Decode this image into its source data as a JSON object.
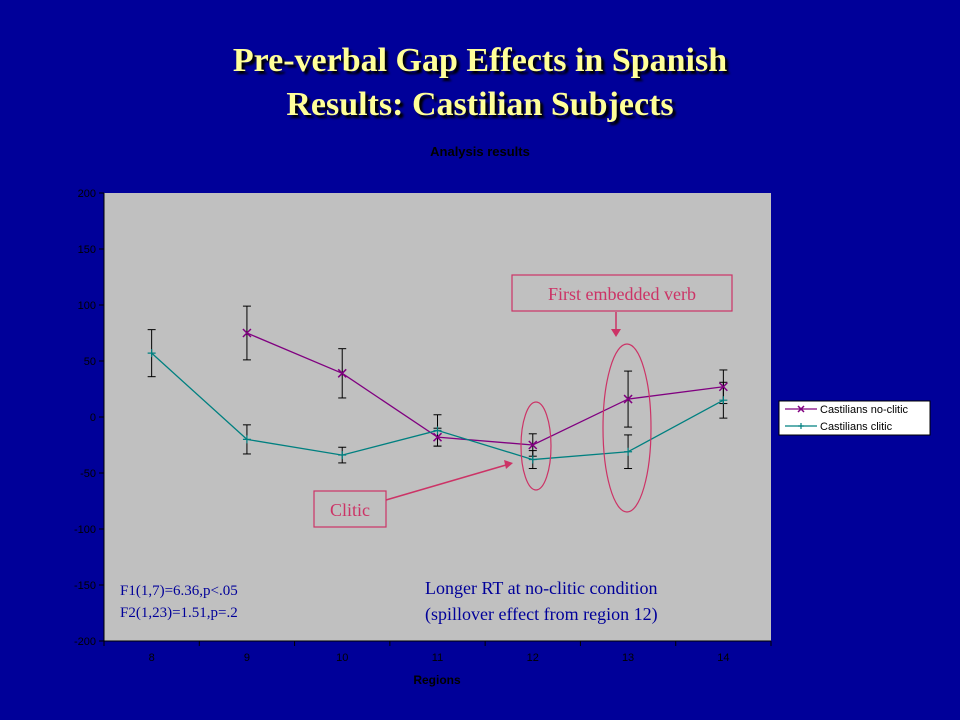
{
  "slide": {
    "title_line1": "Pre-verbal Gap Effects in Spanish",
    "title_line2": "Results: Castilian Subjects"
  },
  "chart_data": {
    "type": "line",
    "title": "Analysis results",
    "xlabel": "Regions",
    "ylabel": "",
    "categories": [
      "8",
      "9",
      "10",
      "11",
      "12",
      "13",
      "14"
    ],
    "ylim": [
      -200,
      200
    ],
    "yticks": [
      200,
      150,
      100,
      50,
      0,
      -50,
      -100,
      -150,
      -200
    ],
    "grid": false,
    "legend_position": "right",
    "series": [
      {
        "name": "Castilians no-clitic",
        "color": "#800080",
        "marker": "x",
        "values": [
          null,
          75,
          39,
          -18,
          -25,
          16,
          27
        ],
        "error": [
          null,
          24,
          22,
          8,
          10,
          25,
          15
        ]
      },
      {
        "name": "Castilians clitic",
        "color": "#008080",
        "marker": "+",
        "values": [
          57,
          -20,
          -34,
          -12,
          -38,
          -31,
          15
        ],
        "error": [
          21,
          13,
          7,
          14,
          8,
          15,
          16
        ]
      }
    ],
    "annotations": {
      "verb_label": "First embedded verb",
      "clitic_label": "Clitic",
      "stats_line1": "F1(1,7)=6.36,p<.05",
      "stats_line2": "F2(1,23)=1.51,p=.2",
      "note_line1": "Longer RT at no-clitic condition",
      "note_line2": "(spillover effect from region 12)"
    },
    "colors": {
      "plot_background": "#c0c0c0",
      "chart_background": "#000099",
      "annotation_text": "#cc3366",
      "annotation_border": "#cc3366",
      "body_text": "#000099"
    }
  }
}
